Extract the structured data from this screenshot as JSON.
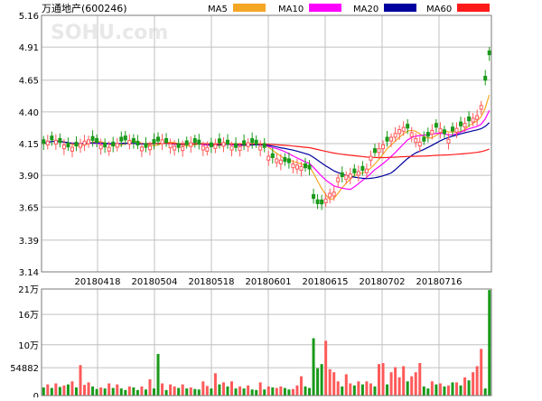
{
  "title": "万通地产(600246)",
  "watermark": "SOHU.com",
  "legend": [
    {
      "label": "MA5",
      "color": "#f5a623"
    },
    {
      "label": "MA10",
      "color": "#ff00ff"
    },
    {
      "label": "MA20",
      "color": "#0000a0"
    },
    {
      "label": "MA60",
      "color": "#ff1a1a"
    }
  ],
  "colors": {
    "up": "#ff5a5a",
    "down": "#1a9a1a",
    "grid": "#c0c0c0",
    "frame": "#7a7a7a",
    "text": "#000000"
  },
  "chart_data": [
    {
      "type": "candlestick",
      "title": "万通地产(600246)",
      "y_ticks": [
        "5.16",
        "4.91",
        "4.65",
        "4.40",
        "4.15",
        "3.90",
        "3.65",
        "3.39",
        "3.14"
      ],
      "ylim": [
        3.14,
        5.16
      ],
      "x_tick_labels": [
        "20180418",
        "20180504",
        "20180518",
        "20180601",
        "20180615",
        "20180702",
        "20180716"
      ],
      "series": [
        {
          "name": "MA5",
          "color": "#f5a623"
        },
        {
          "name": "MA10",
          "color": "#ff00ff"
        },
        {
          "name": "MA20",
          "color": "#0000a0"
        },
        {
          "name": "MA60",
          "color": "#ff1a1a"
        }
      ]
    },
    {
      "type": "bar",
      "title": "",
      "y_ticks": [
        "21万",
        "16万",
        "10万",
        "54882",
        "0"
      ],
      "y_tick_values": [
        210000,
        160000,
        100000,
        54882,
        0
      ],
      "ylim": [
        0,
        210000
      ],
      "values": [
        16000,
        22000,
        15000,
        24000,
        17000,
        20000,
        22000,
        28000,
        16000,
        60000,
        21000,
        26000,
        18000,
        13000,
        16000,
        14000,
        24000,
        15000,
        22000,
        14000,
        11000,
        18000,
        16000,
        11000,
        18000,
        12000,
        32000,
        14000,
        82000,
        24000,
        11000,
        22000,
        18000,
        15000,
        22000,
        14000,
        16000,
        13000,
        12000,
        28000,
        19000,
        14000,
        44000,
        22000,
        26000,
        18000,
        28000,
        14000,
        18000,
        14000,
        20000,
        12000,
        11000,
        26000,
        12000,
        18000,
        16000,
        15000,
        18000,
        15000,
        12000,
        13000,
        20000,
        38000,
        18000,
        15000,
        113000,
        54000,
        62000,
        108000,
        52000,
        46000,
        28000,
        18000,
        42000,
        24000,
        20000,
        28000,
        22000,
        28000,
        24000,
        18000,
        62000,
        64000,
        22000,
        46000,
        56000,
        36000,
        58000,
        28000,
        38000,
        46000,
        64000,
        18000,
        14000,
        28000,
        22000,
        24000,
        18000,
        20000,
        26000,
        26000,
        20000,
        36000,
        30000,
        46000,
        58000,
        92000,
        14000,
        208000
      ],
      "up": [
        false,
        true,
        false,
        true,
        false,
        true,
        false,
        true,
        false,
        true,
        true,
        true,
        false,
        false,
        true,
        false,
        true,
        false,
        true,
        false,
        false,
        true,
        false,
        false,
        true,
        false,
        true,
        false,
        false,
        true,
        false,
        true,
        true,
        false,
        true,
        false,
        true,
        false,
        false,
        true,
        true,
        false,
        true,
        false,
        true,
        false,
        true,
        false,
        true,
        false,
        true,
        false,
        false,
        true,
        false,
        true,
        false,
        true,
        true,
        false,
        false,
        true,
        true,
        true,
        false,
        false,
        false,
        false,
        false,
        true,
        true,
        true,
        true,
        false,
        true,
        true,
        false,
        true,
        false,
        true,
        true,
        false,
        true,
        true,
        false,
        true,
        true,
        true,
        true,
        false,
        true,
        true,
        true,
        false,
        false,
        true,
        false,
        true,
        false,
        true,
        false,
        true,
        false,
        true,
        false,
        true,
        true,
        true,
        false,
        false
      ]
    }
  ]
}
